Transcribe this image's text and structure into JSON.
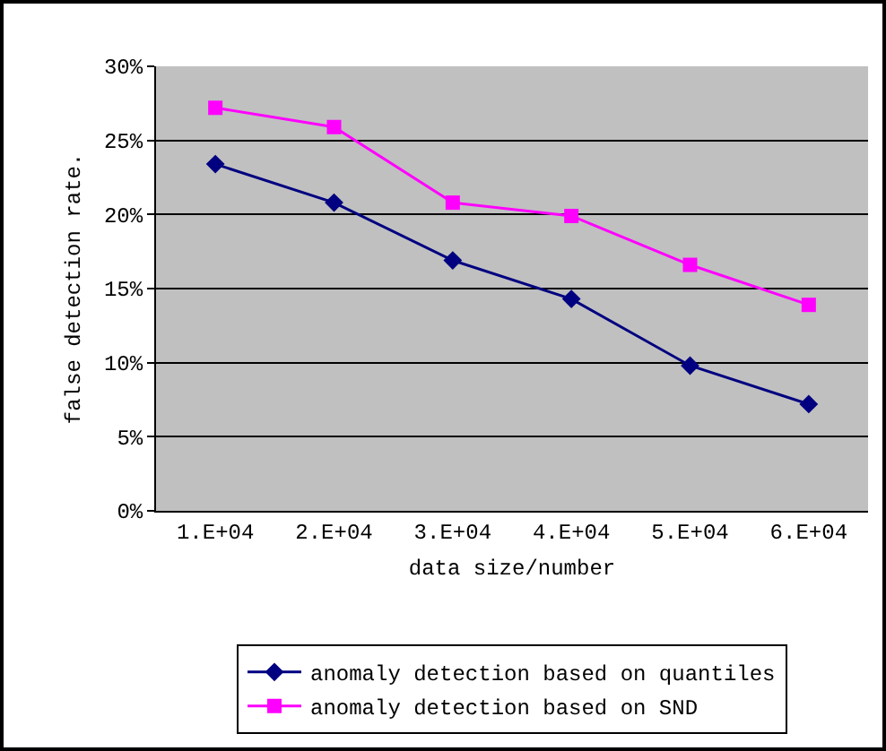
{
  "chart_data": {
    "type": "line",
    "xlabel": "data size/number",
    "ylabel": "false detection rate.",
    "categories": [
      "1.E+04",
      "2.E+04",
      "3.E+04",
      "4.E+04",
      "5.E+04",
      "6.E+04"
    ],
    "series": [
      {
        "name": "anomaly detection based on quantiles",
        "color": "#000080",
        "marker": "diamond",
        "values": [
          23.4,
          20.8,
          16.9,
          14.3,
          9.8,
          7.2
        ]
      },
      {
        "name": "anomaly detection based on SND",
        "color": "#ff00ff",
        "marker": "square",
        "values": [
          27.2,
          25.9,
          20.8,
          19.9,
          16.6,
          13.9
        ]
      }
    ],
    "ylim": [
      0,
      30
    ],
    "yticks": [
      {
        "value": 0,
        "label": "0%"
      },
      {
        "value": 5,
        "label": "5%"
      },
      {
        "value": 10,
        "label": "10%"
      },
      {
        "value": 15,
        "label": "15%"
      },
      {
        "value": 20,
        "label": "20%"
      },
      {
        "value": 25,
        "label": "25%"
      },
      {
        "value": 30,
        "label": "30%"
      }
    ],
    "grid": "y",
    "legend": "bottom",
    "line_style": "solid"
  }
}
